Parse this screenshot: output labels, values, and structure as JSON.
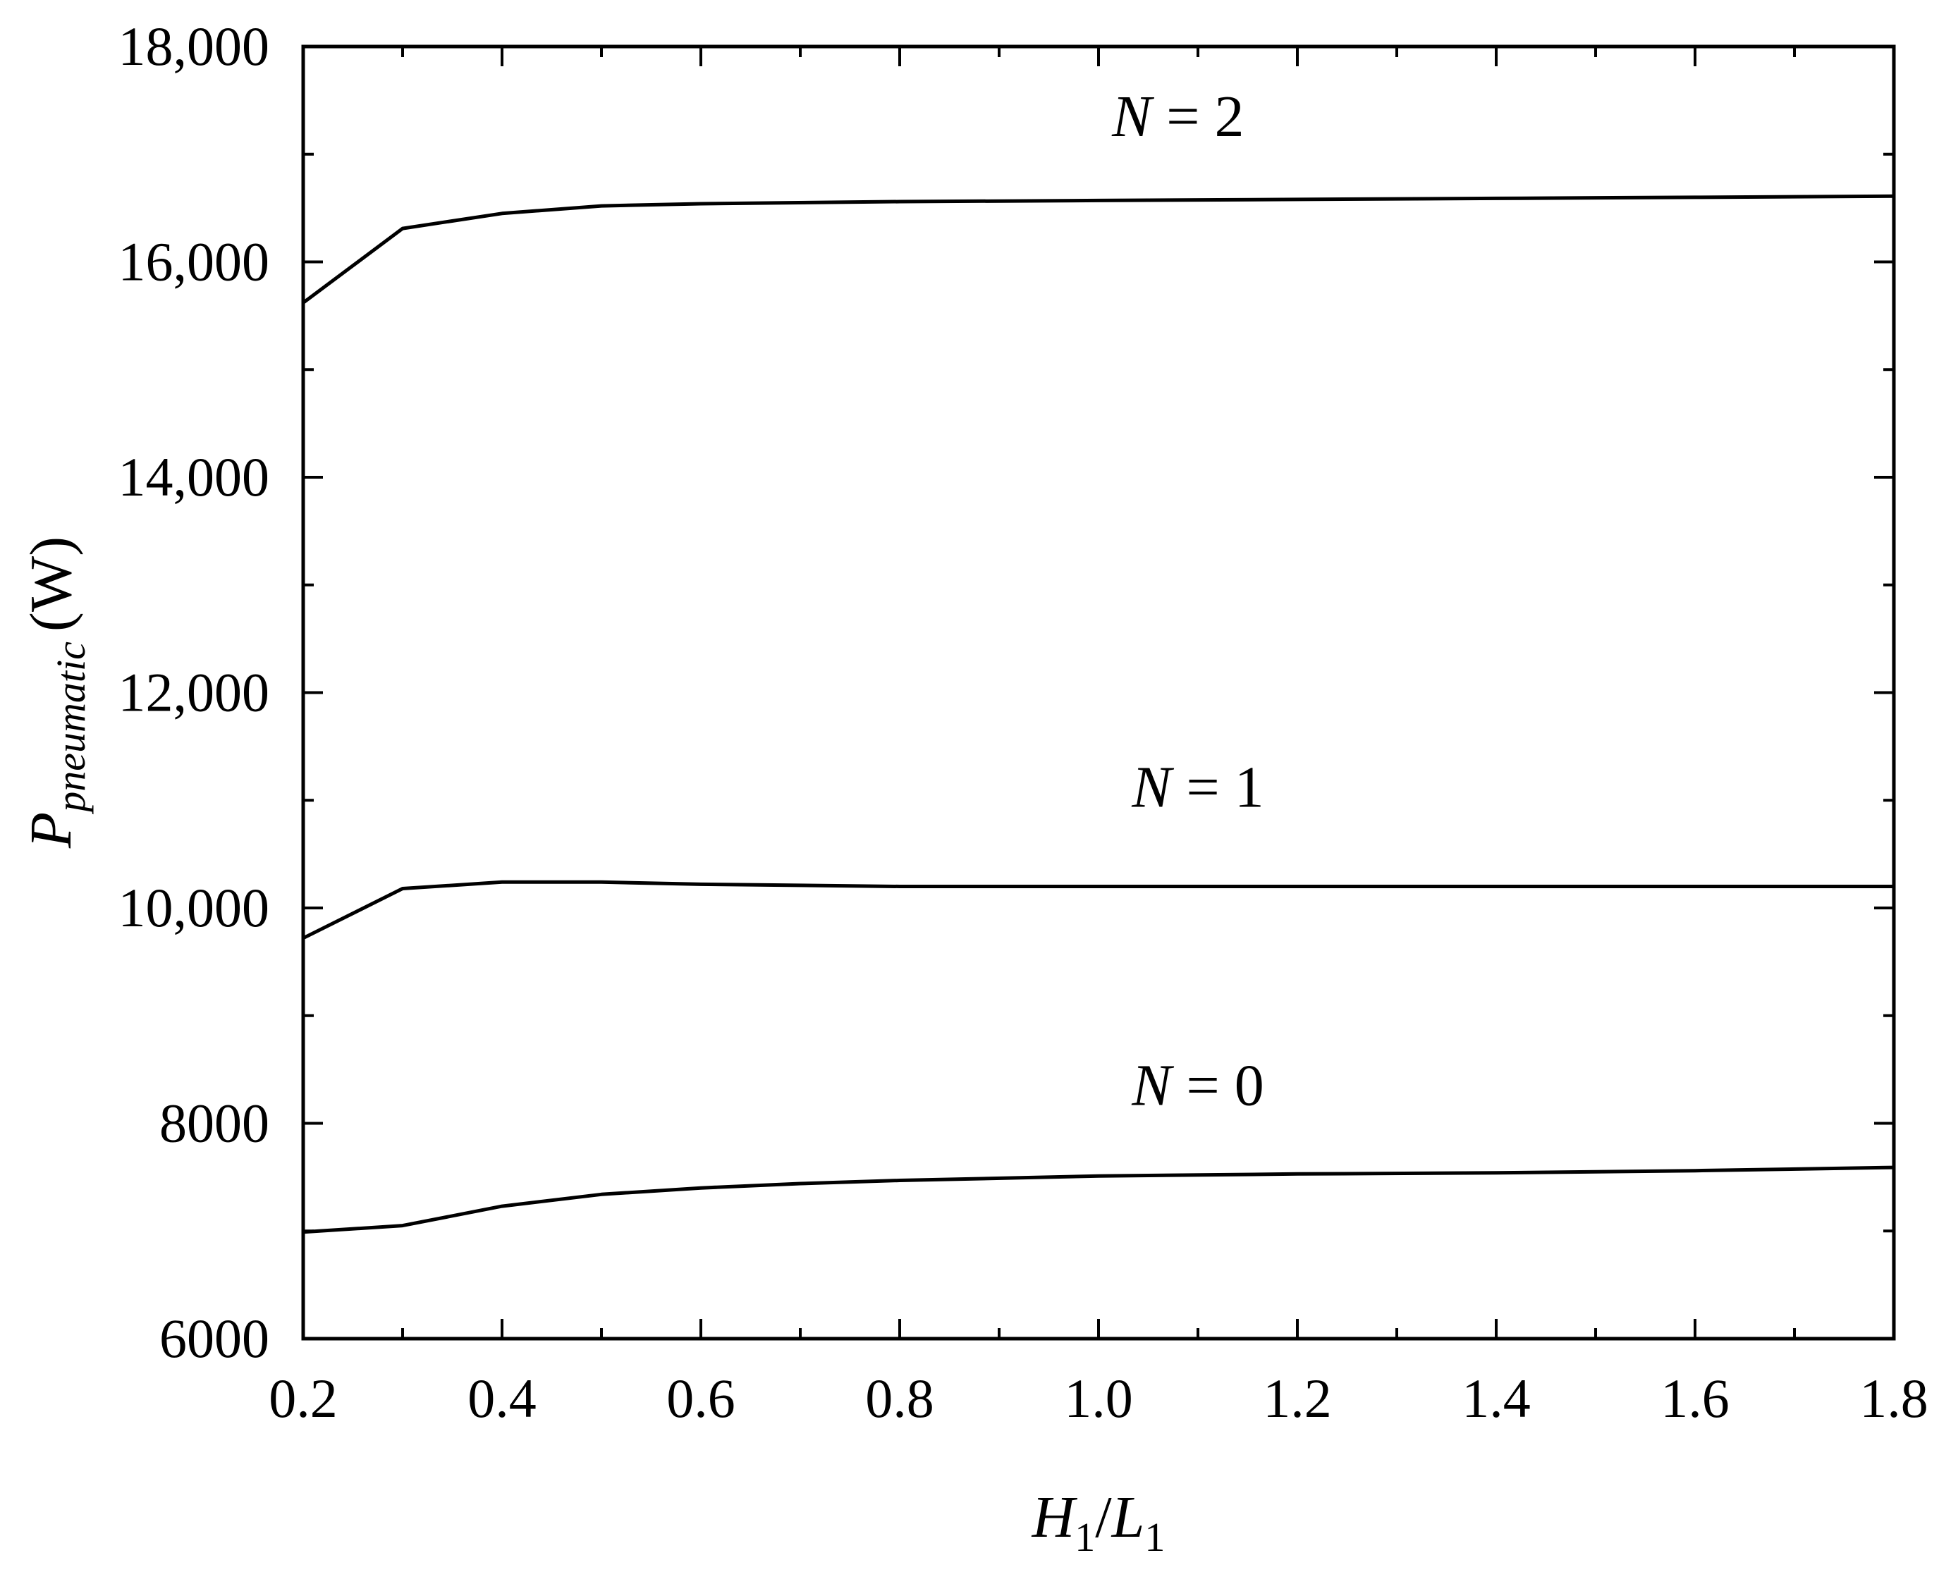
{
  "chart_data": {
    "type": "line",
    "title": "",
    "xlabel": {
      "base": "H",
      "sub1": "1",
      "slash": "/",
      "base2": "L",
      "sub2": "1"
    },
    "ylabel": {
      "base": "P",
      "sub": "pneumatic",
      "unit": "(W)"
    },
    "xlim": [
      0.2,
      1.8
    ],
    "ylim": [
      6000,
      18000
    ],
    "x_ticks": [
      "0.2",
      "0.4",
      "0.6",
      "0.8",
      "1.0",
      "1.2",
      "1.4",
      "1.6",
      "1.8"
    ],
    "x_tick_values": [
      0.2,
      0.4,
      0.6,
      0.8,
      1.0,
      1.2,
      1.4,
      1.6,
      1.8
    ],
    "y_ticks": [
      "6000",
      "8000",
      "10,000",
      "12,000",
      "14,000",
      "16,000",
      "18,000"
    ],
    "y_tick_values": [
      6000,
      8000,
      10000,
      12000,
      14000,
      16000,
      18000
    ],
    "grid": false,
    "legend": "none",
    "line_color": "#000000",
    "series": [
      {
        "label_var": "N",
        "label_eq": " = ",
        "label_val": "0",
        "label_at": [
          1.1,
          8170
        ],
        "x": [
          0.2,
          0.3,
          0.4,
          0.5,
          0.6,
          0.7,
          0.8,
          1.0,
          1.2,
          1.4,
          1.6,
          1.8
        ],
        "y": [
          6990,
          7050,
          7230,
          7340,
          7400,
          7440,
          7470,
          7510,
          7530,
          7540,
          7560,
          7590
        ]
      },
      {
        "label_var": "N",
        "label_eq": " = ",
        "label_val": "1",
        "label_at": [
          1.1,
          10940
        ],
        "x": [
          0.2,
          0.3,
          0.4,
          0.5,
          0.6,
          0.8,
          1.0,
          1.2,
          1.4,
          1.6,
          1.8
        ],
        "y": [
          9720,
          10180,
          10240,
          10240,
          10220,
          10200,
          10200,
          10200,
          10200,
          10200,
          10200
        ]
      },
      {
        "label_var": "N",
        "label_eq": " = ",
        "label_val": "2",
        "label_at": [
          1.08,
          17170
        ],
        "x": [
          0.2,
          0.3,
          0.4,
          0.5,
          0.6,
          0.8,
          1.0,
          1.2,
          1.4,
          1.6,
          1.8
        ],
        "y": [
          15620,
          16310,
          16450,
          16520,
          16540,
          16560,
          16570,
          16580,
          16590,
          16600,
          16610
        ]
      }
    ]
  }
}
